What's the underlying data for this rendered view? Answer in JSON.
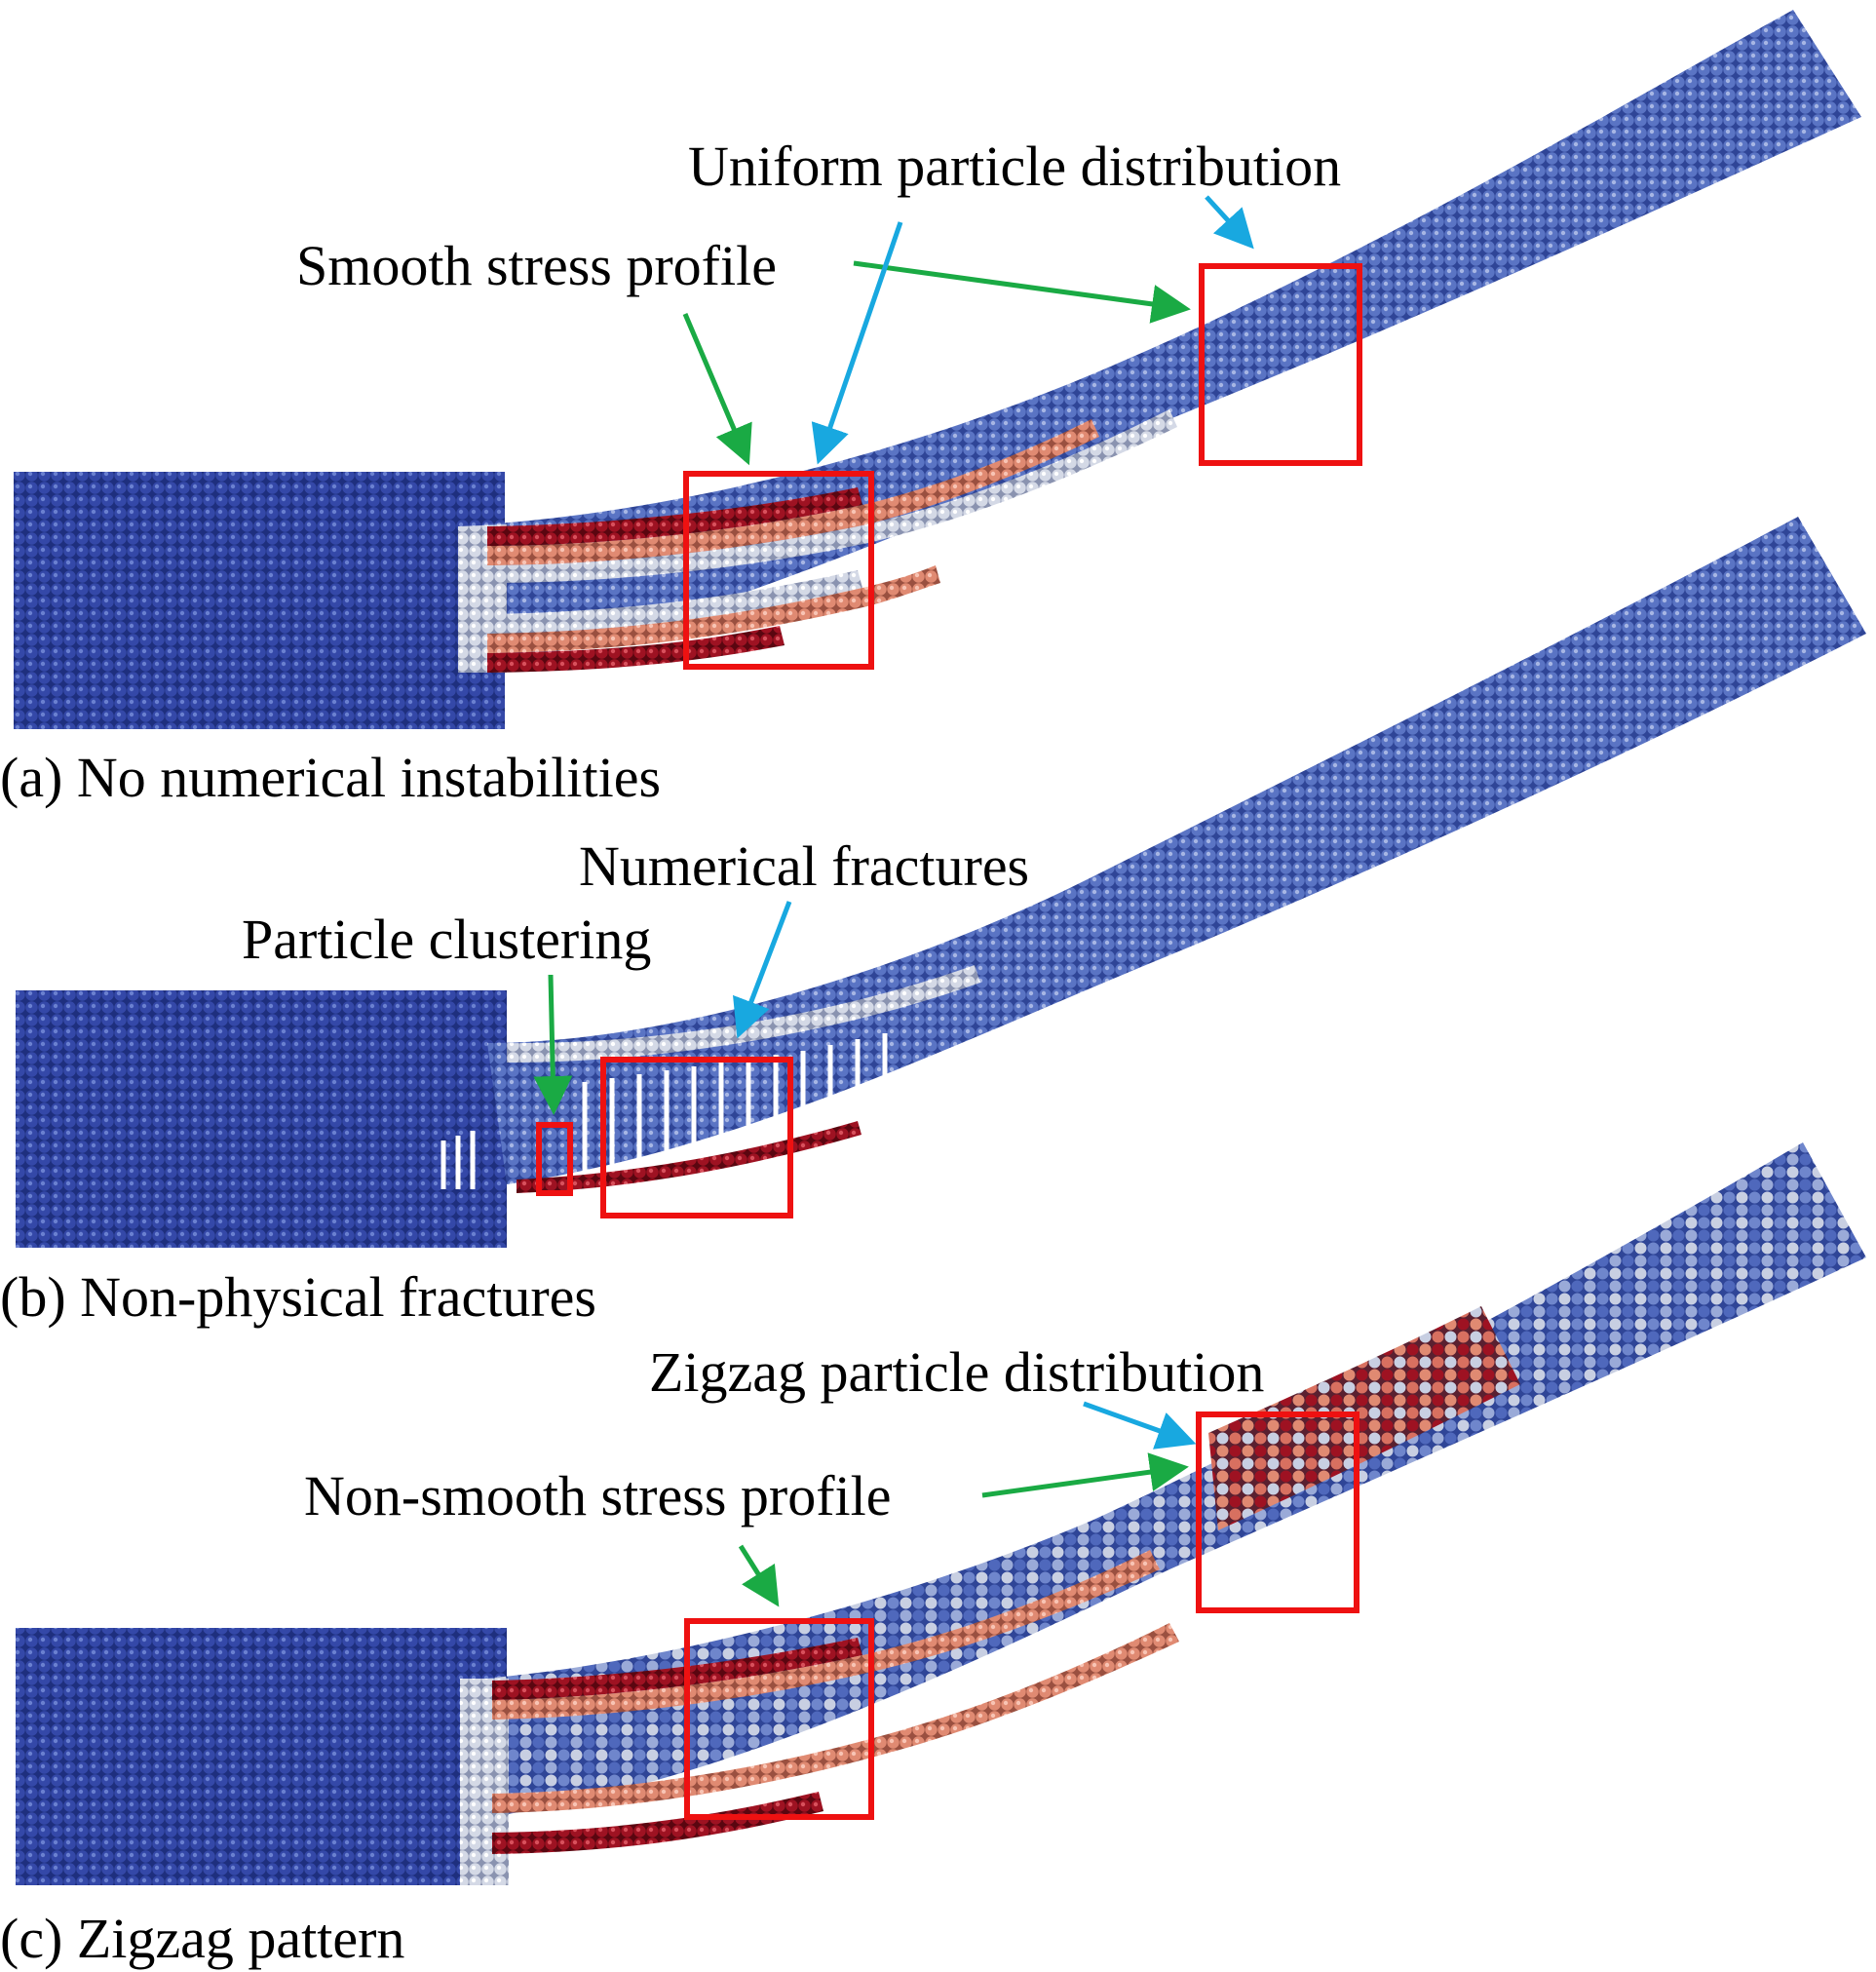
{
  "panels": [
    {
      "id": "a",
      "caption": "(a) No numerical instabilities",
      "labels": {
        "smooth": "Smooth stress profile",
        "uniform": "Uniform particle distribution"
      }
    },
    {
      "id": "b",
      "caption": "(b) Non-physical fractures",
      "labels": {
        "clustering": "Particle clustering",
        "fractures": "Numerical fractures"
      }
    },
    {
      "id": "c",
      "caption": "(c) Zigzag pattern",
      "labels": {
        "zigzag": "Zigzag particle distribution",
        "nonsmooth": "Non-smooth stress profile"
      }
    }
  ],
  "colors": {
    "particle_blue_dark": "#2a3a8c",
    "particle_blue": "#4a63b8",
    "particle_blue_light": "#8fa3d6",
    "particle_white": "#d9dde8",
    "particle_salmon": "#e0907a",
    "particle_red": "#a01020",
    "highlight_box": "#ee1111",
    "arrow_green": "#1aaa44",
    "arrow_blue": "#18a8e0"
  }
}
